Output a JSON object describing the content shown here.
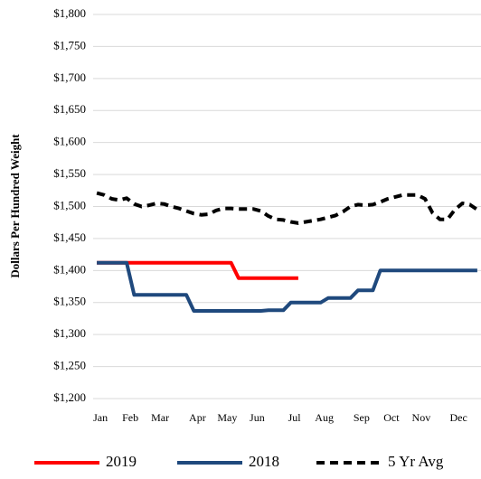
{
  "chart_data": {
    "type": "line",
    "y_label": "Dollars Per Hundred Weight",
    "categories": [
      "Jan",
      null,
      null,
      null,
      "Feb",
      null,
      null,
      null,
      "Mar",
      null,
      null,
      null,
      null,
      "Apr",
      null,
      null,
      null,
      "May",
      null,
      null,
      null,
      "Jun",
      null,
      null,
      null,
      null,
      "Jul",
      null,
      null,
      null,
      "Aug",
      null,
      null,
      null,
      null,
      "Sep",
      null,
      null,
      null,
      "Oct",
      null,
      null,
      null,
      "Nov",
      null,
      null,
      null,
      null,
      "Dec",
      null,
      null,
      null
    ],
    "series": [
      {
        "name": "2019",
        "color": "#ff0000",
        "dash": false,
        "values": [
          1412,
          1412,
          1412,
          1412,
          1412,
          1412,
          1412,
          1412,
          1412,
          1412,
          1412,
          1412,
          1412,
          1412,
          1412,
          1412,
          1412,
          1412,
          1412,
          1388,
          1388,
          1388,
          1388,
          1388,
          1388,
          1388,
          1388,
          1388,
          null,
          null,
          null,
          null,
          null,
          null,
          null,
          null,
          null,
          null,
          null,
          null,
          null,
          null,
          null,
          null,
          null,
          null,
          null,
          null,
          null,
          null,
          null,
          null
        ]
      },
      {
        "name": "2018",
        "color": "#1f497d",
        "dash": false,
        "values": [
          1412,
          1412,
          1412,
          1412,
          1412,
          1362,
          1362,
          1362,
          1362,
          1362,
          1362,
          1362,
          1362,
          1337,
          1337,
          1337,
          1337,
          1337,
          1337,
          1337,
          1337,
          1337,
          1337,
          1338,
          1338,
          1338,
          1350,
          1350,
          1350,
          1350,
          1350,
          1357,
          1357,
          1357,
          1357,
          1369,
          1369,
          1369,
          1400,
          1400,
          1400,
          1400,
          1400,
          1400,
          1400,
          1400,
          1400,
          1400,
          1400,
          1400,
          1400,
          1400
        ]
      },
      {
        "name": "5 Yr Avg",
        "color": "#000000",
        "dash": true,
        "values": [
          1521,
          1518,
          1512,
          1510,
          1513,
          1504,
          1500,
          1502,
          1505,
          1504,
          1500,
          1497,
          1493,
          1489,
          1487,
          1488,
          1494,
          1497,
          1497,
          1496,
          1496,
          1496,
          1493,
          1485,
          1480,
          1479,
          1476,
          1474,
          1476,
          1478,
          1480,
          1483,
          1486,
          1492,
          1500,
          1503,
          1502,
          1503,
          1507,
          1512,
          1515,
          1518,
          1518,
          1518,
          1512,
          1490,
          1480,
          1480,
          1495,
          1505,
          1503,
          1495
        ]
      }
    ],
    "ylim": [
      1200,
      1800
    ],
    "yticks": [
      {
        "value": 1200,
        "label": "$1,200"
      },
      {
        "value": 1250,
        "label": "$1,250"
      },
      {
        "value": 1300,
        "label": "$1,300"
      },
      {
        "value": 1350,
        "label": "$1,350"
      },
      {
        "value": 1400,
        "label": "$1,400"
      },
      {
        "value": 1450,
        "label": "$1,450"
      },
      {
        "value": 1500,
        "label": "$1,500"
      },
      {
        "value": 1550,
        "label": "$1,550"
      },
      {
        "value": 1600,
        "label": "$1,600"
      },
      {
        "value": 1650,
        "label": "$1,650"
      },
      {
        "value": 1700,
        "label": "$1,700"
      },
      {
        "value": 1750,
        "label": "$1,750"
      },
      {
        "value": 1800,
        "label": "$1,800"
      }
    ],
    "grid": true
  }
}
